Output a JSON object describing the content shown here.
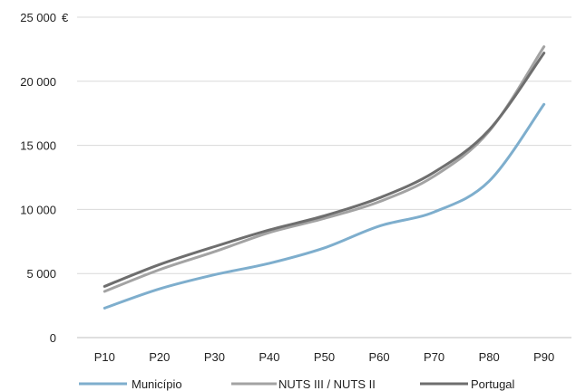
{
  "chart_data": {
    "type": "line",
    "categories": [
      "P10",
      "P20",
      "P30",
      "P40",
      "P50",
      "P60",
      "P70",
      "P80",
      "P90"
    ],
    "y_unit": "€",
    "ylim": [
      0,
      25000
    ],
    "yticks": [
      {
        "value": 0,
        "label": "0"
      },
      {
        "value": 5000,
        "label": "5 000"
      },
      {
        "value": 10000,
        "label": "10 000"
      },
      {
        "value": 15000,
        "label": "15 000"
      },
      {
        "value": 20000,
        "label": "20 000"
      },
      {
        "value": 25000,
        "label": "25 000"
      }
    ],
    "grid": true,
    "legend_position": "bottom",
    "series": [
      {
        "name": "Município",
        "color": "#7eaecd",
        "values": [
          2300,
          3800,
          4900,
          5800,
          7000,
          8700,
          9800,
          12200,
          18200
        ]
      },
      {
        "name": "NUTS III / NUTS II",
        "color": "#a3a3a3",
        "values": [
          3600,
          5300,
          6700,
          8200,
          9300,
          10600,
          12600,
          16100,
          22700
        ]
      },
      {
        "name": "Portugal",
        "color": "#6e6e6e",
        "values": [
          4000,
          5700,
          7100,
          8400,
          9500,
          10900,
          12900,
          16200,
          22200
        ]
      }
    ]
  }
}
